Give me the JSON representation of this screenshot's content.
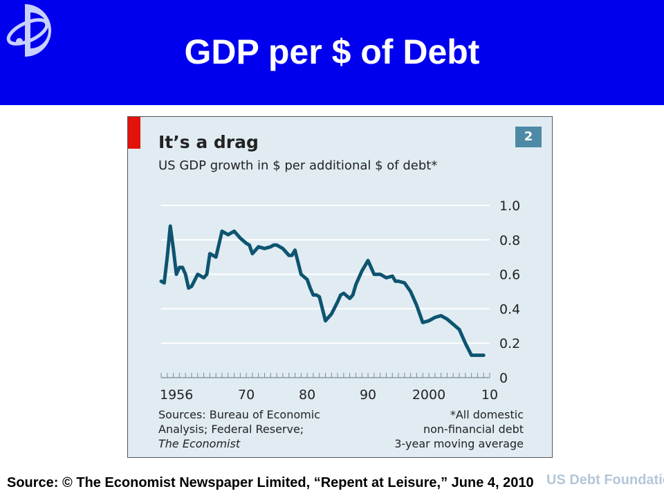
{
  "slide": {
    "title": "GDP per $ of Debt",
    "source": "Source: © The Economist Newspaper Limited, “Repent at Leisure,” June 4, 2010",
    "watermark": "US Debt Foundation",
    "colors": {
      "banner": "#0000ee",
      "line": "#0e5470",
      "chart_bg": "#e0ecf2",
      "tag": "#e3120b",
      "badge": "#4e8aa6"
    },
    "logo_icon": "orbit-logo-icon"
  },
  "chart_data": {
    "type": "line",
    "title": "It’s a drag",
    "subtitle": "US GDP growth in $ per additional $ of debt*",
    "number": "2",
    "x_tick_labels": [
      "1956",
      "70",
      "80",
      "90",
      "2000",
      "10"
    ],
    "x_ticks": [
      1956,
      1970,
      1980,
      1990,
      2000,
      2010
    ],
    "y_tick_labels": [
      "0",
      "0.2",
      "0.4",
      "0.6",
      "0.8",
      "1.0"
    ],
    "y_ticks": [
      0,
      0.2,
      0.4,
      0.6,
      0.8,
      1.0
    ],
    "xlim": [
      1956,
      2010
    ],
    "ylim": [
      0,
      1.0
    ],
    "grid": true,
    "y_axis_side": "right",
    "sources": [
      "Sources: Bureau of Economic",
      "Analysis; Federal Reserve;",
      "The Economist"
    ],
    "footnote": [
      "*All domestic",
      "non-financial debt",
      "3-year moving average"
    ],
    "series": [
      {
        "x": [
          1956,
          1956.5,
          1957,
          1957.5,
          1958,
          1958.5,
          1959,
          1959.5,
          1960,
          1960.5,
          1961,
          1962,
          1962.5,
          1963,
          1963.5,
          1964,
          1965,
          1966,
          1966.5,
          1967,
          1968,
          1969,
          1970,
          1970.5,
          1971,
          1972,
          1973,
          1974,
          1974.5,
          1975,
          1976,
          1977,
          1977.5,
          1978,
          1979,
          1980,
          1980.5,
          1981,
          1981.5,
          1982,
          1983,
          1984,
          1985,
          1985.5,
          1986,
          1987,
          1987.5,
          1988,
          1989,
          1990,
          1991,
          1992,
          1993,
          1994,
          1994.5,
          1995,
          1996,
          1997,
          1998,
          1999,
          2000,
          2001,
          2002,
          2003,
          2004,
          2005,
          2006,
          2007,
          2008,
          2008.5,
          2009
        ],
        "y": [
          0.56,
          0.55,
          0.7,
          0.88,
          0.75,
          0.6,
          0.64,
          0.64,
          0.6,
          0.52,
          0.53,
          0.6,
          0.59,
          0.58,
          0.6,
          0.72,
          0.7,
          0.85,
          0.84,
          0.83,
          0.85,
          0.81,
          0.78,
          0.77,
          0.72,
          0.76,
          0.75,
          0.76,
          0.77,
          0.77,
          0.75,
          0.71,
          0.71,
          0.74,
          0.6,
          0.57,
          0.52,
          0.48,
          0.48,
          0.47,
          0.33,
          0.37,
          0.44,
          0.48,
          0.49,
          0.46,
          0.48,
          0.54,
          0.62,
          0.68,
          0.6,
          0.6,
          0.58,
          0.59,
          0.56,
          0.56,
          0.55,
          0.5,
          0.42,
          0.32,
          0.33,
          0.35,
          0.36,
          0.34,
          0.31,
          0.28,
          0.2,
          0.13,
          0.13,
          0.13,
          0.13
        ]
      }
    ]
  }
}
